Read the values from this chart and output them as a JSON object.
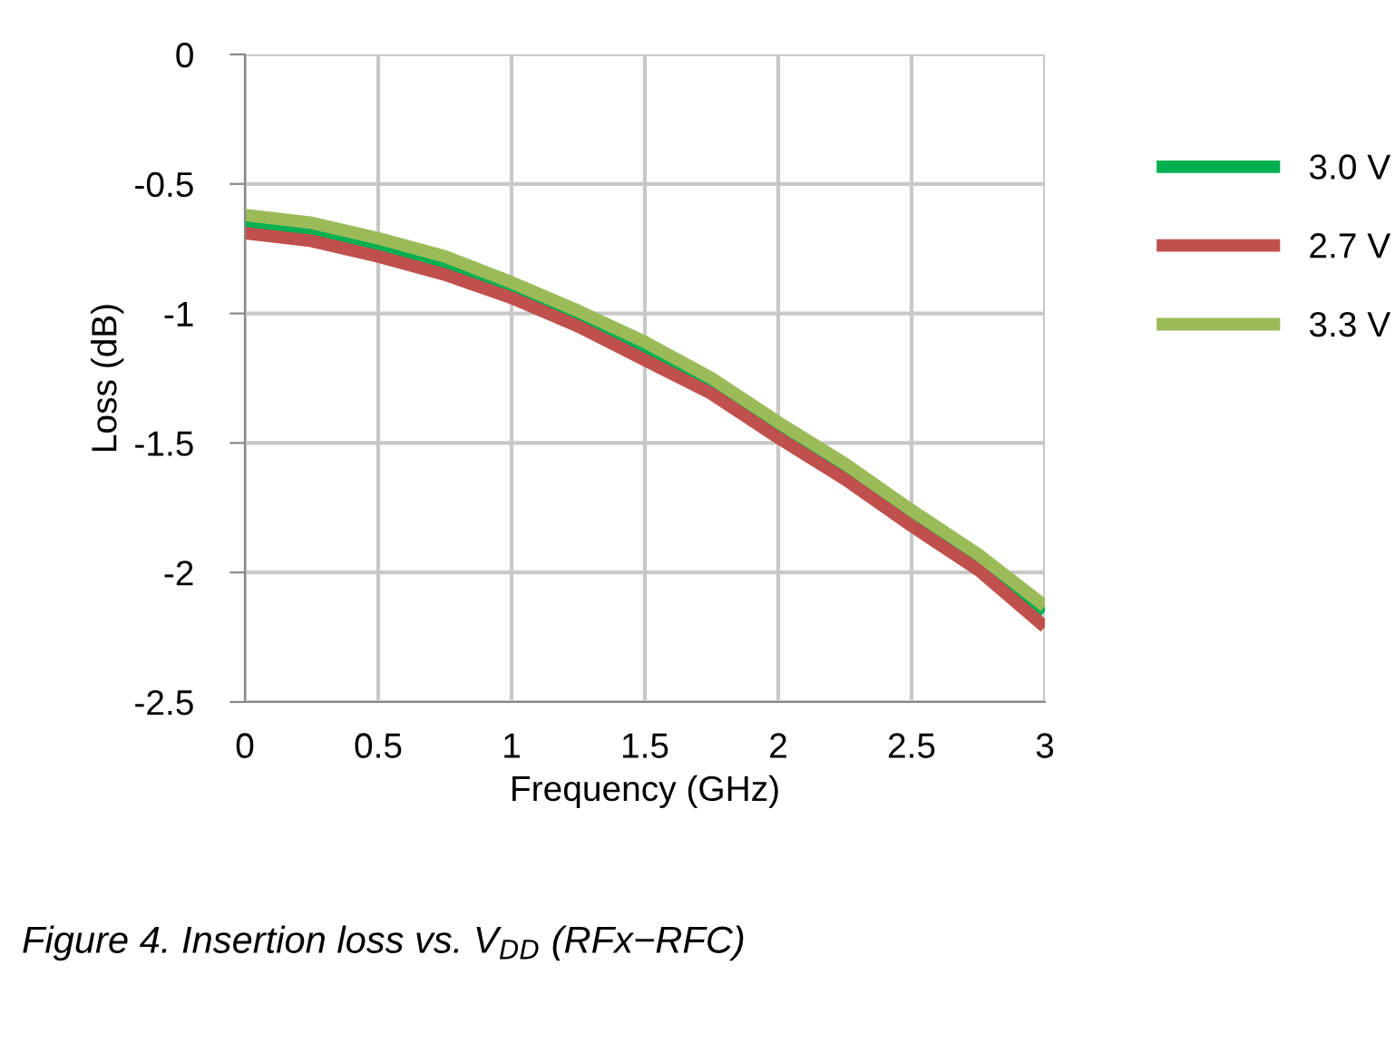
{
  "chart_data": {
    "type": "line",
    "xlabel": "Frequency (GHz)",
    "ylabel": "Loss (dB)",
    "x": [
      0,
      0.25,
      0.5,
      0.75,
      1,
      1.25,
      1.5,
      1.75,
      2,
      2.25,
      2.5,
      2.75,
      3
    ],
    "series": [
      {
        "name": "3.0 V",
        "color": "#00b050",
        "values": [
          -0.65,
          -0.68,
          -0.74,
          -0.81,
          -0.9,
          -1.01,
          -1.13,
          -1.27,
          -1.44,
          -1.6,
          -1.78,
          -1.95,
          -2.15
        ]
      },
      {
        "name": "2.7 V",
        "color": "#c0504d",
        "values": [
          -0.69,
          -0.72,
          -0.78,
          -0.85,
          -0.94,
          -1.05,
          -1.18,
          -1.31,
          -1.48,
          -1.64,
          -1.82,
          -1.99,
          -2.21
        ]
      },
      {
        "name": "3.3 V",
        "color": "#9bbb59",
        "values": [
          -0.62,
          -0.65,
          -0.71,
          -0.78,
          -0.88,
          -0.99,
          -1.11,
          -1.25,
          -1.42,
          -1.58,
          -1.76,
          -1.93,
          -2.13
        ]
      }
    ],
    "xlim": [
      0,
      3
    ],
    "xticks": [
      0,
      0.5,
      1,
      1.5,
      2,
      2.5,
      3
    ],
    "ylim": [
      -2.5,
      0
    ],
    "yticks": [
      0,
      -0.5,
      -1,
      -1.5,
      -2,
      -2.5
    ],
    "grid": true,
    "legend": "right",
    "marker": "none",
    "line_style": "solid",
    "annotations": [
      "Figure 4. Insertion loss vs. V$_{DD}$ (RFx−RFC)"
    ]
  }
}
